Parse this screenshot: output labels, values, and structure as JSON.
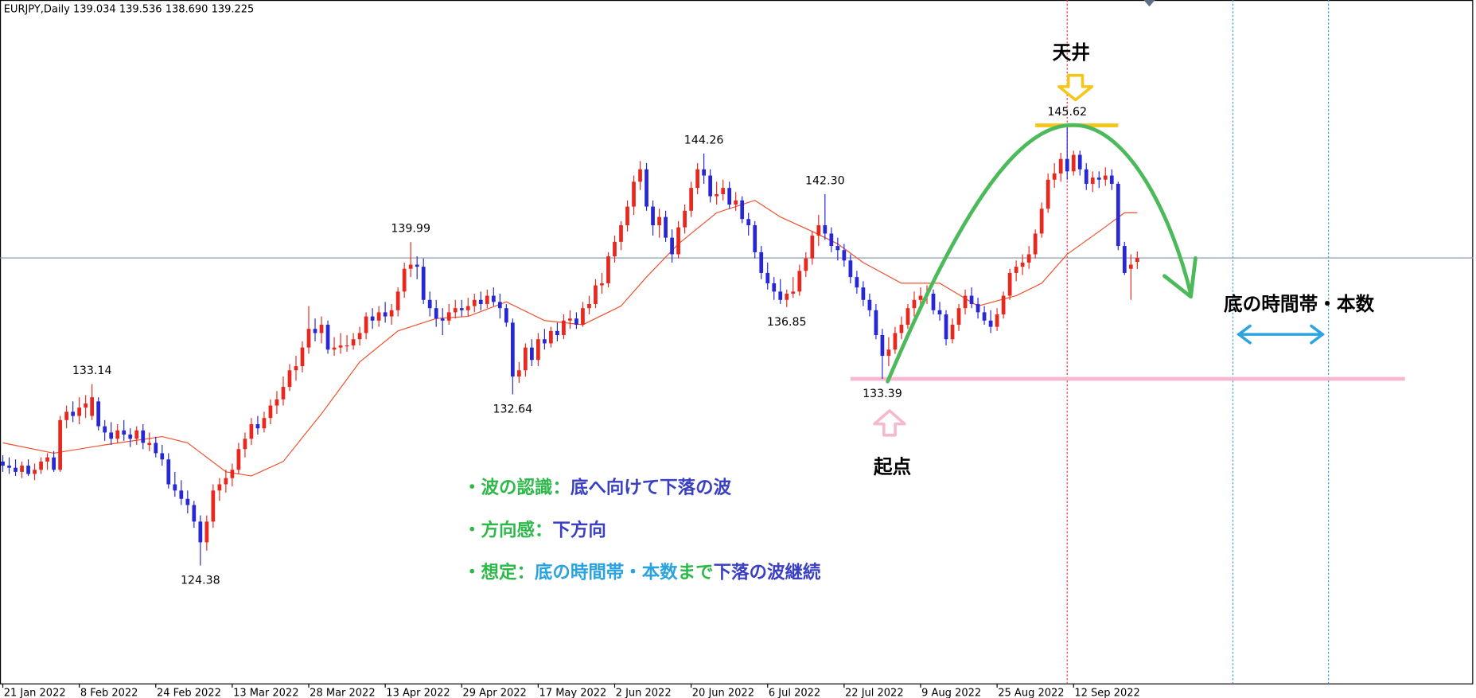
{
  "chart_data": {
    "type": "candlestick",
    "header": "EURJPY,Daily  139.034 139.536 138.690 139.225",
    "up_color": "#e8281e",
    "down_color": "#2727d6",
    "xlim": [
      -0.44,
      230.7
    ],
    "ylim": [
      118.67,
      151.67
    ],
    "xticks": [
      {
        "value": 0,
        "label": "21 Jan 2022"
      },
      {
        "value": 12,
        "label": "8 Feb 2022"
      },
      {
        "value": 24,
        "label": "24 Feb 2022"
      },
      {
        "value": 36,
        "label": "13 Mar 2022"
      },
      {
        "value": 48,
        "label": "28 Mar 2022"
      },
      {
        "value": 60,
        "label": "13 Apr 2022"
      },
      {
        "value": 72,
        "label": "29 Apr 2022"
      },
      {
        "value": 84,
        "label": "17 May 2022"
      },
      {
        "value": 96,
        "label": "2 Jun 2022"
      },
      {
        "value": 108,
        "label": "20 Jun 2022"
      },
      {
        "value": 120,
        "label": "6 Jul 2022"
      },
      {
        "value": 132,
        "label": "22 Jul 2022"
      },
      {
        "value": 144,
        "label": "9 Aug 2022"
      },
      {
        "value": 156,
        "label": "25 Aug 2022"
      },
      {
        "value": 168,
        "label": "12 Sep 2022"
      }
    ],
    "candles": [
      [
        129.4,
        129.7,
        128.9,
        129.2
      ],
      [
        129.2,
        129.6,
        128.8,
        129.1
      ],
      [
        129.1,
        129.5,
        128.7,
        128.9
      ],
      [
        128.9,
        129.4,
        128.6,
        129.2
      ],
      [
        129.2,
        129.5,
        128.7,
        128.8
      ],
      [
        128.8,
        129.3,
        128.5,
        129.0
      ],
      [
        129.0,
        129.6,
        128.8,
        129.4
      ],
      [
        129.4,
        129.8,
        129.0,
        129.6
      ],
      [
        129.6,
        129.9,
        128.9,
        129.0
      ],
      [
        129.0,
        131.6,
        128.9,
        131.4
      ],
      [
        131.4,
        132.1,
        131.0,
        131.8
      ],
      [
        131.8,
        132.3,
        131.3,
        131.6
      ],
      [
        131.6,
        132.5,
        131.2,
        132.0
      ],
      [
        132.0,
        132.6,
        131.5,
        132.2
      ],
      [
        131.6,
        133.14,
        131.4,
        132.5
      ],
      [
        132.3,
        132.5,
        130.9,
        131.1
      ],
      [
        131.1,
        131.4,
        130.4,
        130.8
      ],
      [
        130.8,
        131.3,
        130.2,
        130.5
      ],
      [
        130.5,
        131.2,
        130.3,
        130.9
      ],
      [
        130.9,
        131.4,
        130.4,
        130.7
      ],
      [
        130.7,
        131.0,
        130.1,
        130.5
      ],
      [
        130.5,
        131.1,
        130.2,
        130.9
      ],
      [
        130.9,
        131.2,
        130.0,
        130.3
      ],
      [
        130.2,
        130.8,
        129.9,
        130.3
      ],
      [
        130.3,
        130.6,
        129.6,
        129.8
      ],
      [
        129.8,
        130.2,
        129.2,
        129.5
      ],
      [
        129.5,
        129.8,
        128.1,
        128.3
      ],
      [
        128.3,
        128.9,
        127.7,
        128.0
      ],
      [
        128.0,
        128.5,
        127.3,
        127.6
      ],
      [
        127.6,
        128.0,
        126.9,
        127.3
      ],
      [
        127.3,
        127.5,
        126.2,
        126.5
      ],
      [
        126.5,
        126.8,
        124.38,
        125.5
      ],
      [
        125.5,
        126.8,
        125.1,
        126.5
      ],
      [
        126.5,
        128.3,
        126.2,
        128.0
      ],
      [
        128.0,
        128.6,
        127.5,
        128.3
      ],
      [
        128.3,
        129.0,
        127.9,
        128.6
      ],
      [
        128.6,
        129.3,
        128.2,
        129.0
      ],
      [
        129.0,
        130.3,
        128.8,
        130.0
      ],
      [
        130.0,
        130.8,
        129.6,
        130.5
      ],
      [
        130.5,
        131.5,
        130.2,
        131.2
      ],
      [
        131.2,
        131.6,
        130.7,
        131.0
      ],
      [
        131.0,
        131.8,
        130.8,
        131.5
      ],
      [
        131.5,
        132.4,
        131.2,
        132.1
      ],
      [
        132.1,
        132.8,
        131.7,
        132.4
      ],
      [
        132.4,
        133.5,
        132.1,
        133.0
      ],
      [
        133.0,
        134.1,
        132.8,
        133.8
      ],
      [
        133.8,
        134.5,
        133.3,
        134.0
      ],
      [
        134.0,
        135.2,
        133.7,
        134.9
      ],
      [
        134.9,
        136.9,
        134.6,
        135.8
      ],
      [
        135.8,
        136.3,
        135.2,
        135.6
      ],
      [
        135.6,
        136.4,
        135.1,
        136.0
      ],
      [
        136.0,
        136.2,
        134.6,
        134.8
      ],
      [
        134.8,
        135.4,
        134.5,
        134.9
      ],
      [
        134.9,
        135.6,
        134.6,
        135.0
      ],
      [
        135.0,
        135.5,
        134.7,
        135.0
      ],
      [
        135.0,
        135.6,
        134.8,
        135.3
      ],
      [
        135.3,
        135.9,
        135.0,
        135.6
      ],
      [
        135.6,
        136.6,
        135.3,
        136.4
      ],
      [
        136.4,
        136.8,
        135.8,
        136.2
      ],
      [
        136.2,
        136.9,
        135.9,
        136.6
      ],
      [
        136.6,
        137.1,
        136.1,
        136.4
      ],
      [
        136.4,
        137.0,
        136.0,
        136.7
      ],
      [
        136.7,
        137.8,
        136.4,
        137.6
      ],
      [
        137.6,
        139.0,
        137.3,
        138.7
      ],
      [
        138.7,
        139.99,
        138.3,
        138.9
      ],
      [
        138.9,
        139.3,
        138.2,
        138.8
      ],
      [
        138.8,
        139.2,
        137.0,
        137.2
      ],
      [
        137.2,
        137.6,
        136.4,
        136.8
      ],
      [
        136.8,
        137.2,
        135.9,
        136.3
      ],
      [
        136.3,
        136.8,
        135.5,
        136.2
      ],
      [
        136.2,
        137.0,
        136.0,
        136.6
      ],
      [
        136.6,
        137.2,
        136.3,
        136.8
      ],
      [
        136.8,
        137.2,
        136.4,
        136.7
      ],
      [
        136.7,
        137.3,
        136.4,
        136.9
      ],
      [
        136.9,
        137.5,
        136.6,
        137.2
      ],
      [
        137.2,
        137.6,
        136.7,
        137.0
      ],
      [
        137.0,
        137.7,
        136.8,
        137.4
      ],
      [
        137.4,
        137.8,
        136.9,
        137.1
      ],
      [
        137.1,
        137.5,
        136.3,
        136.8
      ],
      [
        136.8,
        137.0,
        135.9,
        136.1
      ],
      [
        136.1,
        136.3,
        132.64,
        133.5
      ],
      [
        133.5,
        134.2,
        133.2,
        133.8
      ],
      [
        133.8,
        135.1,
        133.5,
        134.9
      ],
      [
        134.9,
        135.3,
        134.0,
        134.3
      ],
      [
        134.3,
        135.6,
        134.0,
        135.3
      ],
      [
        135.3,
        135.8,
        134.8,
        135.1
      ],
      [
        135.1,
        135.9,
        134.9,
        135.7
      ],
      [
        135.7,
        136.1,
        135.2,
        135.5
      ],
      [
        135.5,
        136.5,
        135.3,
        136.2
      ],
      [
        136.2,
        136.7,
        135.8,
        136.3
      ],
      [
        136.3,
        136.6,
        135.8,
        136.0
      ],
      [
        136.0,
        137.1,
        135.9,
        136.8
      ],
      [
        136.8,
        137.4,
        136.5,
        137.0
      ],
      [
        137.0,
        138.2,
        136.8,
        137.9
      ],
      [
        137.9,
        138.5,
        137.5,
        138.0
      ],
      [
        138.0,
        139.5,
        137.8,
        139.3
      ],
      [
        139.3,
        140.3,
        139.0,
        140.0
      ],
      [
        140.0,
        141.0,
        139.6,
        140.8
      ],
      [
        140.8,
        142.0,
        140.5,
        141.7
      ],
      [
        141.7,
        143.2,
        141.3,
        142.9
      ],
      [
        142.9,
        143.9,
        142.5,
        143.5
      ],
      [
        143.5,
        143.8,
        141.5,
        141.7
      ],
      [
        141.7,
        142.0,
        140.3,
        140.8
      ],
      [
        140.8,
        141.6,
        140.2,
        141.2
      ],
      [
        141.2,
        141.5,
        140.0,
        140.2
      ],
      [
        140.2,
        140.6,
        139.0,
        139.4
      ],
      [
        139.4,
        141.0,
        139.2,
        140.7
      ],
      [
        140.7,
        141.8,
        140.4,
        141.5
      ],
      [
        141.5,
        142.9,
        141.2,
        142.6
      ],
      [
        142.6,
        143.8,
        142.3,
        143.5
      ],
      [
        143.5,
        144.26,
        142.8,
        143.2
      ],
      [
        143.2,
        143.5,
        141.9,
        142.2
      ],
      [
        142.2,
        142.9,
        141.8,
        142.3
      ],
      [
        142.3,
        143.0,
        142.0,
        142.6
      ],
      [
        142.6,
        142.9,
        141.6,
        141.8
      ],
      [
        141.8,
        142.4,
        141.5,
        142.0
      ],
      [
        142.0,
        142.2,
        140.9,
        141.1
      ],
      [
        141.1,
        141.4,
        140.3,
        140.8
      ],
      [
        140.8,
        141.0,
        139.2,
        139.5
      ],
      [
        139.5,
        139.8,
        138.2,
        138.5
      ],
      [
        138.5,
        139.0,
        137.7,
        138.0
      ],
      [
        138.0,
        138.3,
        137.2,
        137.6
      ],
      [
        137.6,
        138.2,
        137.0,
        137.2
      ],
      [
        137.2,
        137.7,
        136.85,
        137.5
      ],
      [
        137.5,
        138.3,
        137.3,
        137.6
      ],
      [
        137.6,
        138.9,
        137.4,
        138.6
      ],
      [
        138.6,
        139.5,
        138.3,
        139.2
      ],
      [
        139.2,
        140.5,
        138.9,
        140.3
      ],
      [
        140.3,
        141.3,
        139.8,
        140.8
      ],
      [
        140.8,
        142.3,
        140.1,
        140.4
      ],
      [
        140.4,
        140.7,
        139.5,
        139.8
      ],
      [
        139.8,
        140.2,
        139.1,
        139.6
      ],
      [
        139.6,
        139.9,
        138.8,
        139.1
      ],
      [
        139.1,
        139.4,
        138.0,
        138.3
      ],
      [
        138.3,
        138.6,
        137.5,
        137.8
      ],
      [
        137.8,
        138.1,
        136.9,
        137.2
      ],
      [
        137.2,
        137.5,
        136.4,
        136.7
      ],
      [
        136.7,
        137.0,
        135.3,
        135.5
      ],
      [
        135.5,
        135.8,
        133.39,
        134.5
      ],
      [
        134.5,
        135.4,
        134.0,
        134.8
      ],
      [
        134.8,
        135.9,
        134.6,
        135.6
      ],
      [
        135.6,
        136.4,
        135.3,
        136.0
      ],
      [
        136.0,
        137.0,
        135.8,
        136.8
      ],
      [
        136.8,
        137.6,
        136.4,
        137.2
      ],
      [
        137.2,
        137.8,
        136.9,
        137.4
      ],
      [
        137.4,
        137.9,
        137.0,
        137.5
      ],
      [
        137.5,
        137.7,
        136.5,
        136.7
      ],
      [
        136.7,
        137.1,
        136.2,
        136.5
      ],
      [
        136.5,
        136.7,
        135.0,
        135.3
      ],
      [
        135.3,
        136.3,
        135.1,
        136.0
      ],
      [
        136.0,
        137.0,
        135.7,
        136.8
      ],
      [
        136.8,
        137.7,
        136.5,
        137.4
      ],
      [
        137.4,
        137.8,
        136.8,
        137.0
      ],
      [
        137.0,
        137.3,
        136.3,
        136.6
      ],
      [
        136.6,
        136.9,
        136.0,
        136.2
      ],
      [
        136.2,
        136.7,
        135.6,
        135.9
      ],
      [
        135.9,
        136.8,
        135.7,
        136.5
      ],
      [
        136.5,
        137.6,
        136.3,
        137.4
      ],
      [
        137.4,
        138.7,
        137.2,
        138.5
      ],
      [
        138.5,
        139.1,
        138.1,
        138.8
      ],
      [
        138.8,
        139.4,
        138.4,
        139.0
      ],
      [
        139.0,
        139.8,
        138.7,
        139.4
      ],
      [
        139.4,
        140.6,
        139.2,
        140.4
      ],
      [
        140.4,
        141.9,
        140.2,
        141.6
      ],
      [
        141.6,
        143.3,
        141.4,
        143.0
      ],
      [
        143.0,
        143.8,
        142.6,
        143.3
      ],
      [
        143.3,
        144.3,
        142.9,
        144.0
      ],
      [
        144.0,
        145.62,
        143.0,
        143.4
      ],
      [
        143.4,
        144.4,
        143.2,
        144.2
      ],
      [
        144.2,
        144.4,
        143.2,
        143.5
      ],
      [
        143.5,
        143.8,
        142.5,
        142.8
      ],
      [
        142.8,
        143.4,
        142.4,
        143.1
      ],
      [
        143.1,
        143.4,
        142.6,
        143.0
      ],
      [
        143.0,
        143.6,
        142.7,
        143.2
      ],
      [
        143.2,
        143.5,
        142.5,
        142.8
      ],
      [
        142.8,
        142.9,
        139.6,
        139.8
      ],
      [
        139.8,
        140.0,
        138.4,
        138.5
      ],
      [
        138.7,
        139.4,
        137.2,
        138.9
      ],
      [
        139.034,
        139.536,
        138.69,
        139.225
      ]
    ],
    "ma": {
      "color": "#f0502a",
      "x": [
        0,
        8,
        16,
        25,
        29,
        35,
        39,
        44,
        50,
        56,
        62,
        68,
        73,
        79,
        85,
        91,
        97,
        101,
        106,
        112,
        118,
        122,
        127,
        131,
        135,
        141,
        147,
        153,
        159,
        163,
        167,
        172,
        176,
        178
      ],
      "values": [
        130.3,
        129.8,
        130.2,
        130.6,
        130.3,
        128.9,
        128.7,
        129.4,
        131.7,
        134.2,
        135.7,
        136.3,
        136.4,
        137.1,
        136.2,
        136.0,
        136.9,
        138.3,
        139.9,
        141.4,
        142.0,
        141.2,
        140.5,
        139.9,
        139.0,
        138.0,
        138.0,
        136.9,
        137.4,
        138.0,
        139.4,
        140.5,
        141.4,
        141.4
      ]
    },
    "extremes": {
      "x": [
        14,
        31,
        64,
        80,
        110,
        123,
        129,
        138,
        167
      ],
      "values": [
        133.14,
        124.38,
        139.99,
        132.64,
        144.26,
        136.85,
        142.3,
        133.39,
        145.62
      ],
      "value_labels": [
        "133.14",
        "124.38",
        "139.99",
        "132.64",
        "144.26",
        "136.85",
        "142.30",
        "133.39",
        "145.62"
      ]
    },
    "price_line_color": "#7f95ad",
    "vlines": [
      {
        "x": 167,
        "color": "#e8333a"
      },
      {
        "x": 193,
        "color": "#3a9ad9"
      },
      {
        "x": 208,
        "color": "#3a9ad9"
      }
    ],
    "support": {
      "value": 133.39,
      "from": 133,
      "to": 220,
      "color": "#f6b8cf"
    },
    "top_line": {
      "value": 145.62,
      "from": 162,
      "to": 175,
      "color": "#f5c518"
    },
    "peak_label": "天井",
    "start_label": "起点",
    "bottom_label": "底の時間帯・本数",
    "notes": [
      [
        {
          "text": "・波の認識：",
          "color": "#2db84a"
        },
        {
          "text": "底へ向けて下落の波",
          "color": "#3a3fc4"
        }
      ],
      [
        {
          "text": "・方向感：",
          "color": "#2db84a"
        },
        {
          "text": "下方向",
          "color": "#3a3fc4"
        }
      ],
      [
        {
          "text": "・想定：",
          "color": "#2db84a"
        },
        {
          "text": "底の時間帯・本数",
          "color": "#29a3e0"
        },
        {
          "text": "まで",
          "color": "#2db84a"
        },
        {
          "text": "下落の波継続",
          "color": "#3a3fc4"
        }
      ]
    ]
  }
}
